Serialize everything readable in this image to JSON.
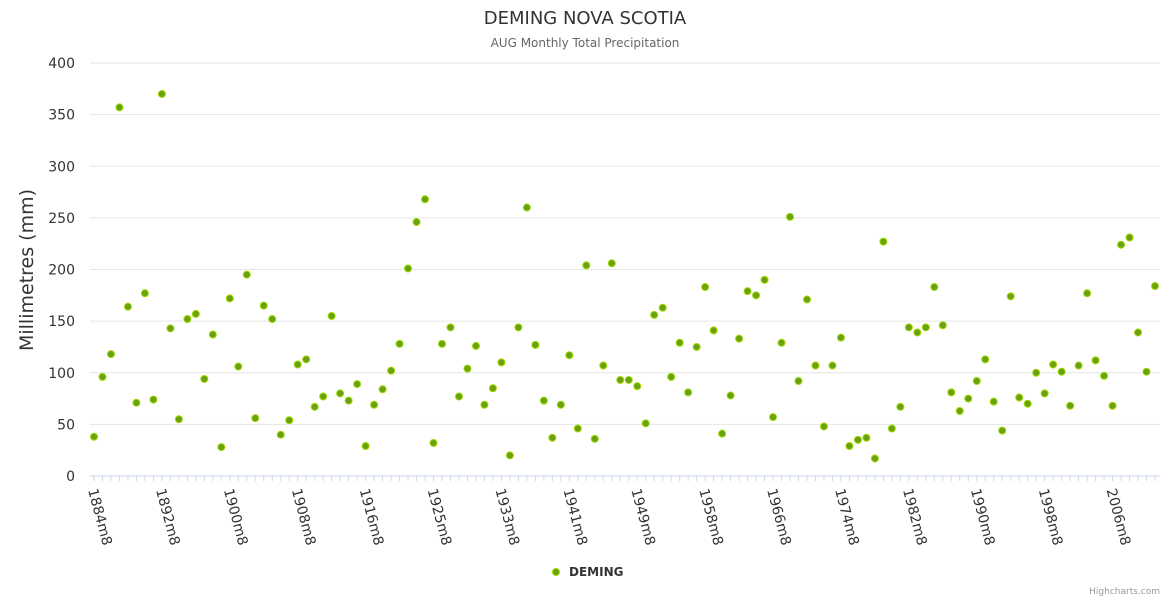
{
  "chart_data": {
    "type": "scatter",
    "title": "DEMING NOVA SCOTIA",
    "subtitle": "AUG Monthly Total Precipitation",
    "ylabel": "Millimetres (mm)",
    "ylim": [
      0,
      400
    ],
    "yticks": [
      0,
      50,
      100,
      150,
      200,
      250,
      300,
      350,
      400
    ],
    "xtick_labels": [
      "1884m8",
      "1892m8",
      "1900m8",
      "1908m8",
      "1916m8",
      "1925m8",
      "1933m8",
      "1941m8",
      "1949m8",
      "1958m8",
      "1966m8",
      "1974m8",
      "1982m8",
      "1990m8",
      "1998m8",
      "2006m8"
    ],
    "legend": "bottom-center",
    "grid": true,
    "colors": {
      "series": "#6aa10f",
      "series_border": "#9ed900",
      "grid": "#e6e6e6",
      "axis": "#ccd6eb"
    },
    "credits": "Highcharts.com",
    "series": [
      {
        "name": "DEMING",
        "values": [
          38,
          96,
          118,
          357,
          164,
          71,
          177,
          74,
          370,
          143,
          55,
          152,
          157,
          94,
          137,
          28,
          172,
          106,
          195,
          56,
          165,
          152,
          40,
          54,
          108,
          113,
          67,
          77,
          155,
          80,
          73,
          89,
          29,
          69,
          84,
          102,
          128,
          201,
          246,
          268,
          32,
          128,
          144,
          77,
          104,
          126,
          69,
          85,
          110,
          20,
          144,
          260,
          127,
          73,
          37,
          69,
          117,
          46,
          204,
          36,
          107,
          206,
          93,
          93,
          87,
          51,
          156,
          163,
          96,
          129,
          81,
          125,
          183,
          141,
          41,
          78,
          133,
          179,
          175,
          190,
          57,
          129,
          251,
          92,
          171,
          107,
          48,
          107,
          134,
          29,
          35,
          37,
          17,
          227,
          46,
          67,
          144,
          139,
          144,
          183,
          146,
          81,
          63,
          75,
          92,
          113,
          72,
          44,
          174,
          76,
          70,
          100,
          80,
          108,
          101,
          68,
          107,
          177,
          112,
          97,
          68,
          224,
          231,
          139,
          101,
          184
        ]
      }
    ]
  }
}
